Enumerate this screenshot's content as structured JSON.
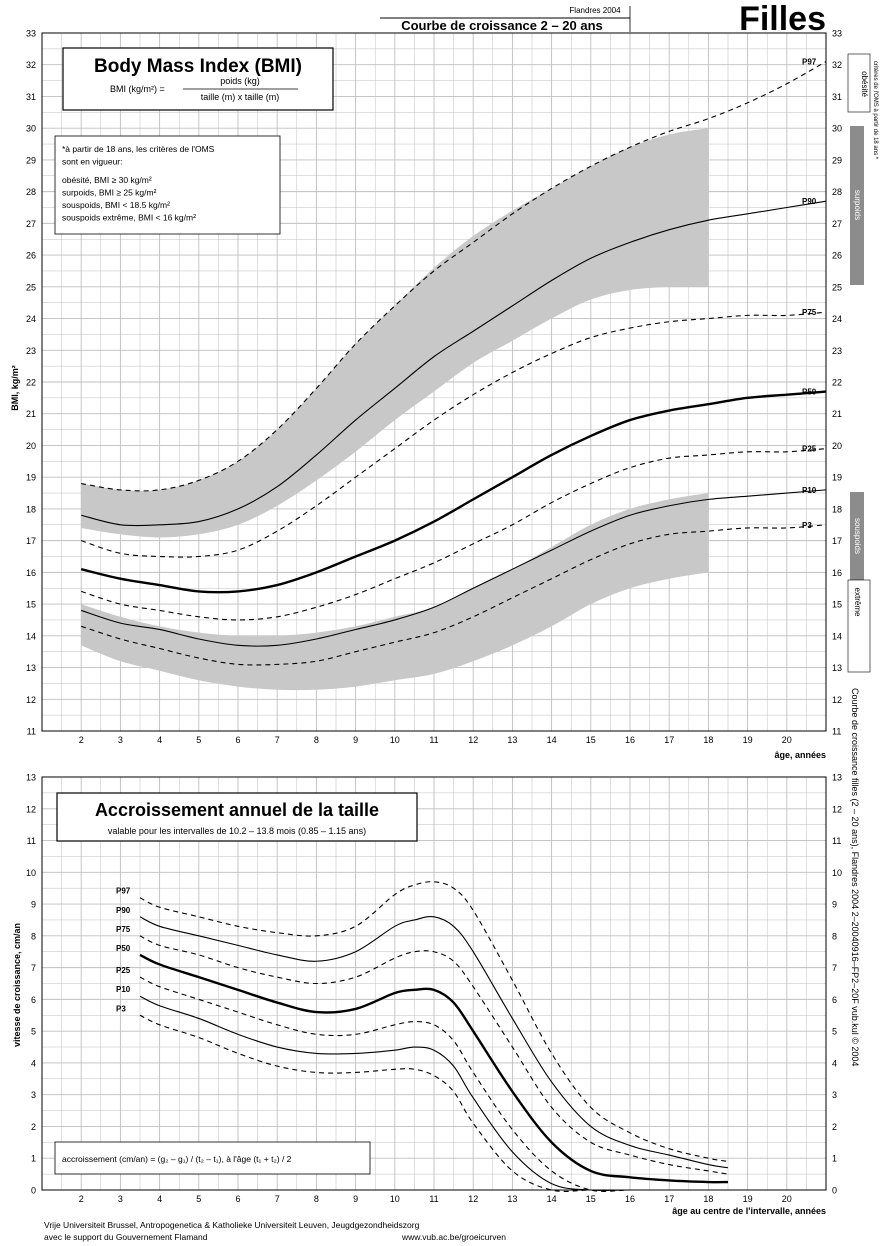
{
  "header": {
    "source_small": "Flandres 2004",
    "subtitle": "Courbe de croissance 2 – 20 ans",
    "sex_title": "Filles"
  },
  "side_labels": {
    "obesite": "obésité",
    "criteria_note": "critères de l'OMS à partir de 18 ans *",
    "surpoids": "surpoids",
    "souspoids": "souspoids",
    "extreme": "extrême",
    "vertical_ref": "Courbe de croissance filles (2 – 20 ans), Flandres 2004    2–20040916–FP2–20F    vub.kul © 2004"
  },
  "footer": {
    "line1": "Vrije Universiteit Brussel, Antropogenetica & Katholieke Universiteit Leuven, Jeugdgezondheidszorg",
    "line2": "avec le support du Gouvernement Flamand",
    "url": "www.vub.ac.be/groeicurven"
  },
  "colors": {
    "band": "#c8c8c8",
    "grid": "#bfbfbf",
    "text": "#000000"
  },
  "chart_data": [
    {
      "type": "line",
      "title": "Body Mass Index (BMI)",
      "formula": {
        "lhs": "BMI (kg/m²) =",
        "numerator": "poids (kg)",
        "denominator": "taille (m)  x  taille (m)"
      },
      "note_lines": [
        "*à partir de 18 ans, les critères de l'OMS",
        "sont en vigueur:",
        "obésité, BMI ≥ 30 kg/m²",
        "surpoids, BMI ≥ 25 kg/m²",
        "souspoids, BMI < 18.5 kg/m²",
        "souspoids extrême, BMI < 16 kg/m²"
      ],
      "ylabel": "BMI,  kg/m²",
      "xlabel": "âge, années",
      "xlim": [
        1,
        21
      ],
      "ylim": [
        11,
        33
      ],
      "x_ticks": [
        2,
        3,
        4,
        5,
        6,
        7,
        8,
        9,
        10,
        11,
        12,
        13,
        14,
        15,
        16,
        17,
        18,
        19,
        20
      ],
      "y_ticks": [
        11,
        12,
        13,
        14,
        15,
        16,
        17,
        18,
        19,
        20,
        21,
        22,
        23,
        24,
        25,
        26,
        27,
        28,
        29,
        30,
        31,
        32,
        33
      ],
      "grid": true,
      "bands": [
        {
          "name": "overweight zone",
          "x": [
            2,
            3,
            4,
            5,
            6,
            7,
            8,
            9,
            10,
            11,
            12,
            13,
            14,
            15,
            16,
            17,
            18
          ],
          "upper": [
            18.8,
            18.6,
            18.6,
            18.9,
            19.5,
            20.5,
            21.8,
            23.2,
            24.4,
            25.6,
            26.6,
            27.4,
            28.1,
            28.8,
            29.4,
            29.8,
            30
          ],
          "lower": [
            17.4,
            17.2,
            17.1,
            17.2,
            17.5,
            18.1,
            18.9,
            19.8,
            20.8,
            21.7,
            22.6,
            23.3,
            24,
            24.6,
            24.9,
            25,
            25
          ]
        },
        {
          "name": "underweight zone",
          "x": [
            2,
            3,
            4,
            5,
            6,
            7,
            8,
            9,
            10,
            11,
            12,
            13,
            14,
            15,
            16,
            17,
            18
          ],
          "upper": [
            15,
            14.6,
            14.3,
            14.1,
            14,
            14,
            14.1,
            14.3,
            14.6,
            14.9,
            15.5,
            16.1,
            16.8,
            17.5,
            18,
            18.3,
            18.5
          ],
          "lower": [
            13.7,
            13.2,
            12.9,
            12.6,
            12.4,
            12.3,
            12.3,
            12.4,
            12.6,
            12.8,
            13.2,
            13.7,
            14.3,
            15,
            15.5,
            15.8,
            16
          ]
        }
      ],
      "x": [
        2,
        3,
        4,
        5,
        6,
        7,
        8,
        9,
        10,
        11,
        12,
        13,
        14,
        15,
        16,
        17,
        18,
        19,
        20,
        21
      ],
      "series": [
        {
          "name": "P97",
          "style": "dashed",
          "values": [
            18.8,
            18.6,
            18.6,
            18.9,
            19.5,
            20.5,
            21.8,
            23.2,
            24.4,
            25.5,
            26.4,
            27.3,
            28.1,
            28.8,
            29.4,
            29.9,
            30.3,
            30.8,
            31.4,
            32.1
          ]
        },
        {
          "name": "P90",
          "style": "solid",
          "values": [
            17.8,
            17.5,
            17.5,
            17.6,
            18,
            18.7,
            19.7,
            20.8,
            21.8,
            22.8,
            23.6,
            24.4,
            25.2,
            25.9,
            26.4,
            26.8,
            27.1,
            27.3,
            27.5,
            27.7
          ]
        },
        {
          "name": "P75",
          "style": "dashed",
          "values": [
            17,
            16.6,
            16.5,
            16.5,
            16.7,
            17.3,
            18.1,
            19,
            19.9,
            20.8,
            21.6,
            22.3,
            22.9,
            23.4,
            23.7,
            23.9,
            24,
            24.1,
            24.1,
            24.2
          ]
        },
        {
          "name": "P50",
          "style": "bold",
          "values": [
            16.1,
            15.8,
            15.6,
            15.4,
            15.4,
            15.6,
            16,
            16.5,
            17,
            17.6,
            18.3,
            19,
            19.7,
            20.3,
            20.8,
            21.1,
            21.3,
            21.5,
            21.6,
            21.7
          ]
        },
        {
          "name": "P25",
          "style": "dashed",
          "values": [
            15.4,
            15,
            14.8,
            14.6,
            14.5,
            14.6,
            14.9,
            15.3,
            15.8,
            16.3,
            16.9,
            17.5,
            18.2,
            18.8,
            19.3,
            19.6,
            19.7,
            19.8,
            19.8,
            19.9
          ]
        },
        {
          "name": "P10",
          "style": "solid",
          "values": [
            14.8,
            14.4,
            14.2,
            13.9,
            13.7,
            13.7,
            13.9,
            14.2,
            14.5,
            14.9,
            15.5,
            16.1,
            16.7,
            17.3,
            17.8,
            18.1,
            18.3,
            18.4,
            18.5,
            18.6
          ]
        },
        {
          "name": "P3",
          "style": "dashed",
          "values": [
            14.3,
            13.9,
            13.6,
            13.3,
            13.1,
            13.1,
            13.2,
            13.5,
            13.8,
            14.1,
            14.6,
            15.2,
            15.8,
            16.4,
            16.9,
            17.2,
            17.3,
            17.4,
            17.4,
            17.5
          ]
        }
      ]
    },
    {
      "type": "line",
      "title": "Accroissement annuel de la taille",
      "subtitle": "valable pour les intervalles de 10.2 – 13.8 mois (0.85 – 1.15 ans)",
      "formula_text": "accroissement (cm/an) = (g₂ – g₁) / (t₂ – t₁), à l'âge (t₁ + t₂) / 2",
      "ylabel": "vitesse de croissance,  cm/an",
      "xlabel": "âge au centre de l'intervalle, années",
      "xlim": [
        1,
        21
      ],
      "ylim": [
        0,
        13
      ],
      "x_ticks": [
        2,
        3,
        4,
        5,
        6,
        7,
        8,
        9,
        10,
        11,
        12,
        13,
        14,
        15,
        16,
        17,
        18,
        19,
        20
      ],
      "y_ticks": [
        0,
        1,
        2,
        3,
        4,
        5,
        6,
        7,
        8,
        9,
        10,
        11,
        12,
        13
      ],
      "grid": true,
      "x": [
        3.5,
        4,
        5,
        6,
        7,
        8,
        9,
        10,
        10.5,
        11,
        11.5,
        12,
        13,
        14,
        15,
        16,
        17,
        18,
        18.5
      ],
      "series": [
        {
          "name": "P97",
          "style": "dashed",
          "values": [
            9.2,
            8.9,
            8.6,
            8.3,
            8.1,
            8,
            8.3,
            9.3,
            9.6,
            9.7,
            9.5,
            8.8,
            6.6,
            4.3,
            2.6,
            1.8,
            1.3,
            1,
            0.9
          ]
        },
        {
          "name": "P90",
          "style": "solid",
          "values": [
            8.6,
            8.3,
            8,
            7.7,
            7.4,
            7.2,
            7.5,
            8.3,
            8.5,
            8.6,
            8.3,
            7.5,
            5.4,
            3.4,
            2,
            1.4,
            1.1,
            0.8,
            0.7
          ]
        },
        {
          "name": "P75",
          "style": "dashed",
          "values": [
            8,
            7.7,
            7.4,
            7,
            6.7,
            6.5,
            6.7,
            7.3,
            7.5,
            7.5,
            7.2,
            6.4,
            4.5,
            2.6,
            1.5,
            1.1,
            0.8,
            0.6,
            0.5
          ]
        },
        {
          "name": "P50",
          "style": "bold",
          "values": [
            7.4,
            7.1,
            6.7,
            6.3,
            5.9,
            5.6,
            5.7,
            6.2,
            6.3,
            6.3,
            5.9,
            5,
            3.1,
            1.5,
            0.6,
            0.4,
            0.3,
            0.25,
            0.25
          ]
        },
        {
          "name": "P25",
          "style": "dashed",
          "values": [
            6.7,
            6.4,
            6,
            5.6,
            5.2,
            4.9,
            4.9,
            5.2,
            5.3,
            5.2,
            4.7,
            3.7,
            1.9,
            0.6,
            0,
            0,
            0,
            0,
            0
          ]
        },
        {
          "name": "P10",
          "style": "solid",
          "values": [
            6.1,
            5.8,
            5.4,
            4.9,
            4.5,
            4.3,
            4.3,
            4.4,
            4.5,
            4.4,
            3.9,
            2.9,
            1.2,
            0.2,
            0,
            0,
            0,
            0,
            0
          ]
        },
        {
          "name": "P3",
          "style": "dashed",
          "values": [
            5.5,
            5.2,
            4.8,
            4.3,
            3.9,
            3.7,
            3.7,
            3.8,
            3.8,
            3.6,
            3.1,
            2.1,
            0.6,
            0,
            0,
            0,
            0,
            0,
            0
          ]
        }
      ]
    }
  ]
}
